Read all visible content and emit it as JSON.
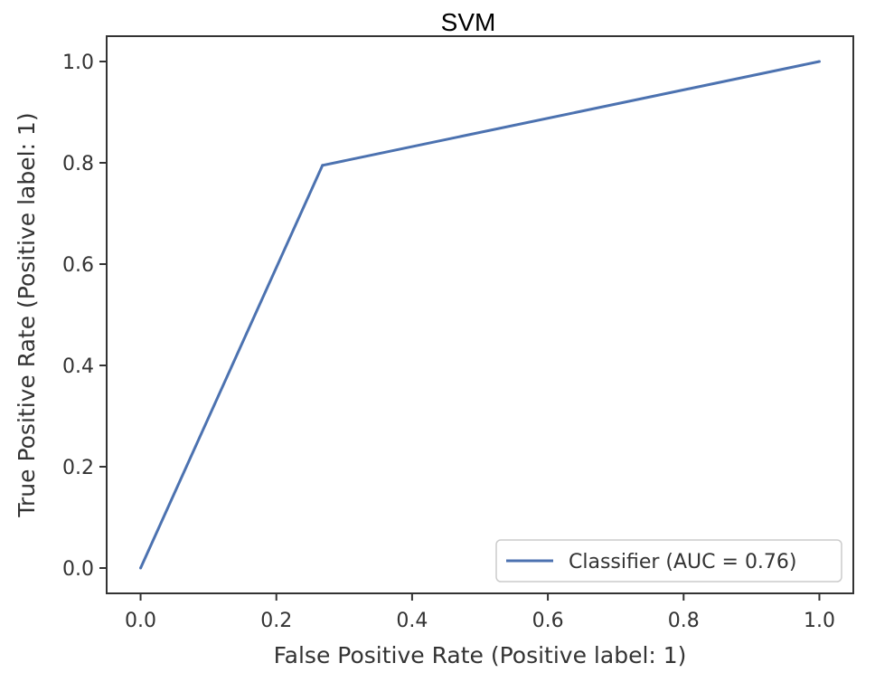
{
  "chart_data": {
    "type": "line",
    "title": "SVM",
    "xlabel": "False Positive Rate (Positive label: 1)",
    "ylabel": "True Positive Rate (Positive label: 1)",
    "xlim": [
      -0.05,
      1.05
    ],
    "ylim": [
      -0.05,
      1.05
    ],
    "xticks": [
      0.0,
      0.2,
      0.4,
      0.6,
      0.8,
      1.0
    ],
    "xtick_labels": [
      "0.0",
      "0.2",
      "0.4",
      "0.6",
      "0.8",
      "1.0"
    ],
    "yticks": [
      0.0,
      0.2,
      0.4,
      0.6,
      0.8,
      1.0
    ],
    "ytick_labels": [
      "0.0",
      "0.2",
      "0.4",
      "0.6",
      "0.8",
      "1.0"
    ],
    "grid": false,
    "legend_position": "lower-right",
    "series": [
      {
        "name": "Classifier (AUC = 0.76)",
        "color": "#4c72b0",
        "x": [
          0.0,
          0.268,
          1.0
        ],
        "y": [
          0.0,
          0.795,
          1.0
        ]
      }
    ]
  }
}
